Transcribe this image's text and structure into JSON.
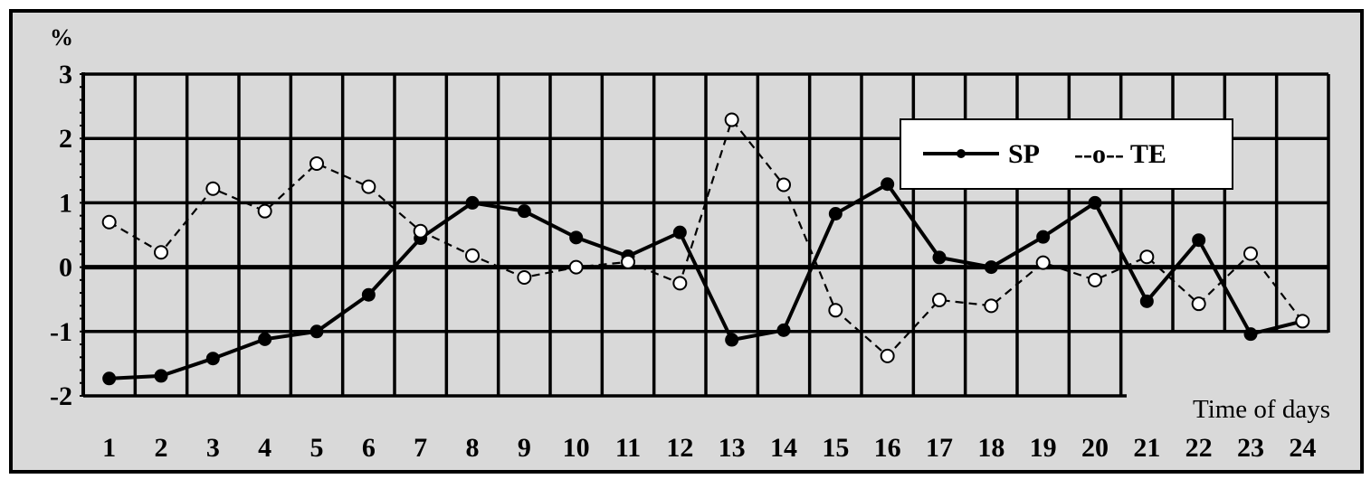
{
  "chart_data": {
    "type": "line",
    "ylabel": "%",
    "xlabel": "Time of days",
    "x": [
      1,
      2,
      3,
      4,
      5,
      6,
      7,
      8,
      9,
      10,
      11,
      12,
      13,
      14,
      15,
      16,
      17,
      18,
      19,
      20,
      21,
      22,
      23,
      24
    ],
    "ylim": [
      -2,
      3
    ],
    "yticks": [
      3,
      2,
      1,
      0,
      -1,
      -2
    ],
    "grid": true,
    "legend_position": "top-right",
    "series": [
      {
        "name": "SP",
        "legend_label": "SP",
        "style": "solid",
        "marker": "filled-circle",
        "values": [
          -1.73,
          -1.69,
          -1.42,
          -1.12,
          -1.0,
          -0.43,
          0.45,
          1.0,
          0.87,
          0.46,
          0.17,
          0.54,
          -1.13,
          -0.98,
          0.83,
          1.29,
          0.15,
          0.0,
          0.47,
          1.0,
          -0.53,
          0.42,
          -1.04,
          -0.84
        ]
      },
      {
        "name": "TE",
        "legend_label": "--o-- TE",
        "style": "dashed",
        "marker": "open-circle",
        "values": [
          0.7,
          0.23,
          1.22,
          0.87,
          1.61,
          1.25,
          0.56,
          0.18,
          -0.16,
          0.0,
          0.08,
          -0.25,
          2.29,
          1.28,
          -0.67,
          -1.38,
          -0.51,
          -0.6,
          0.07,
          -0.2,
          0.16,
          -0.57,
          0.21,
          -0.84
        ]
      }
    ],
    "colors": {
      "background": "#d9d9d9",
      "line": "#000000",
      "frame": "#000000"
    }
  }
}
